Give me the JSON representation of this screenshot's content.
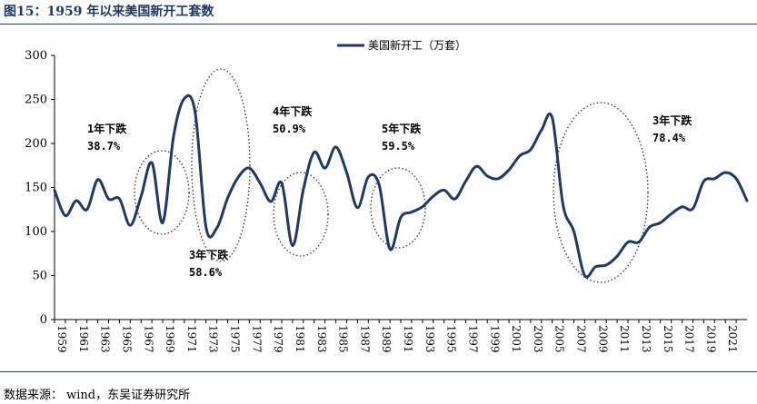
{
  "header": {
    "title": "图15：1959 年以来美国新开工套数"
  },
  "footer": {
    "source": "数据来源：  wind，东吴证券研究所"
  },
  "chart_data": {
    "type": "line",
    "title": "",
    "xlabel": "",
    "ylabel": "",
    "ylim": [
      0,
      300
    ],
    "yticks": [
      0,
      50,
      100,
      150,
      200,
      250,
      300
    ],
    "xlim": [
      1959,
      2023
    ],
    "xticks": [
      "1959",
      "1961",
      "1963",
      "1965",
      "1967",
      "1969",
      "1971",
      "1973",
      "1975",
      "1977",
      "1979",
      "1981",
      "1983",
      "1985",
      "1987",
      "1989",
      "1991",
      "1993",
      "1995",
      "1997",
      "1999",
      "2001",
      "2003",
      "2005",
      "2007",
      "2009",
      "2011",
      "2013",
      "2015",
      "2017",
      "2019",
      "2021"
    ],
    "grid": false,
    "legend_position": "top-center",
    "series": [
      {
        "name": "美国新开工（万套）",
        "color": "#1f3864",
        "x": [
          1959,
          1960,
          1961,
          1962,
          1963,
          1964,
          1965,
          1966,
          1967,
          1968,
          1969,
          1970,
          1971,
          1972,
          1973,
          1974,
          1975,
          1976,
          1977,
          1978,
          1979,
          1980,
          1981,
          1982,
          1983,
          1984,
          1985,
          1986,
          1987,
          1988,
          1989,
          1990,
          1991,
          1992,
          1993,
          1994,
          1995,
          1996,
          1997,
          1998,
          1999,
          2000,
          2001,
          2002,
          2003,
          2004,
          2005,
          2006,
          2007,
          2008,
          2009,
          2010,
          2011,
          2012,
          2013,
          2014,
          2015,
          2016,
          2017,
          2018,
          2019,
          2020,
          2021,
          2022,
          2023
        ],
        "values": [
          147,
          118,
          135,
          125,
          159,
          137,
          137,
          107,
          140,
          178,
          110,
          208,
          251,
          235,
          105,
          104,
          138,
          162,
          172,
          155,
          134,
          155,
          84,
          148,
          190,
          172,
          196,
          167,
          127,
          162,
          153,
          80,
          116,
          122,
          128,
          140,
          147,
          137,
          157,
          174,
          163,
          160,
          170,
          186,
          193,
          215,
          229,
          130,
          100,
          50,
          60,
          62,
          72,
          88,
          88,
          105,
          110,
          120,
          128,
          126,
          157,
          160,
          167,
          160,
          135
        ]
      }
    ],
    "annotations": [
      {
        "text_line1": "1年下跌",
        "text_line2": "38.7%"
      },
      {
        "text_line1": "3年下跌",
        "text_line2": "58.6%"
      },
      {
        "text_line1": "4年下跌",
        "text_line2": "50.9%"
      },
      {
        "text_line1": "5年下跌",
        "text_line2": "59.5%"
      },
      {
        "text_line1": "3年下跌",
        "text_line2": "78.4%"
      }
    ]
  }
}
